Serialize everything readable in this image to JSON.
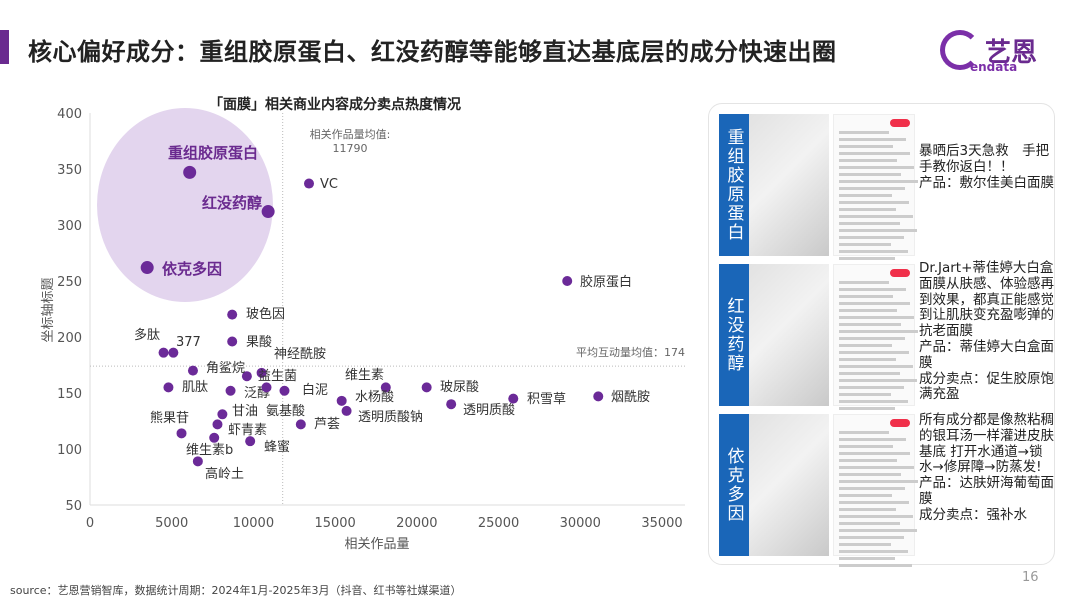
{
  "header": {
    "title": "核心偏好成分：重组胶原蛋白、红没药醇等能够直达基底层的成分快速出圈",
    "logo_cn": "艺恩",
    "logo_en": "endata"
  },
  "colors": {
    "accent": "#6a2a8f",
    "point": "#6b2a98",
    "highlight_ellipse": "#e3d5ee",
    "tag_blue": "#1a66b8"
  },
  "chart_data": {
    "type": "scatter",
    "title": "「面膜」相关商业内容成分卖点热度情况",
    "xlabel": "相关作品量",
    "ylabel": "坐标轴标题",
    "xlim": [
      0,
      35000
    ],
    "ylim": [
      50,
      400
    ],
    "xticks": [
      0,
      5000,
      10000,
      15000,
      20000,
      25000,
      30000,
      35000
    ],
    "yticks": [
      50,
      100,
      150,
      200,
      250,
      300,
      350,
      400
    ],
    "grid": false,
    "x_mean": {
      "label": "相关作品量均值:",
      "value": "11790"
    },
    "y_mean": {
      "label": "平均互动量均值：174",
      "value": 174
    },
    "highlighted": [
      "重组胶原蛋白",
      "红没药醇",
      "依克多因"
    ],
    "points": [
      {
        "name": "重组胶原蛋白",
        "x": 6100,
        "y": 347
      },
      {
        "name": "红没药醇",
        "x": 10900,
        "y": 312
      },
      {
        "name": "依克多因",
        "x": 3500,
        "y": 262
      },
      {
        "name": "VC",
        "x": 13400,
        "y": 337
      },
      {
        "name": "胶原蛋白",
        "x": 29200,
        "y": 250
      },
      {
        "name": "玻色因",
        "x": 8700,
        "y": 220
      },
      {
        "name": "多肽",
        "x": 4500,
        "y": 186
      },
      {
        "name": "377",
        "x": 5100,
        "y": 186
      },
      {
        "name": "果酸",
        "x": 8700,
        "y": 196
      },
      {
        "name": "神经酰胺",
        "x": 10500,
        "y": 168
      },
      {
        "name": "益生菌",
        "x": 9600,
        "y": 165
      },
      {
        "name": "角鲨烷",
        "x": 6300,
        "y": 170
      },
      {
        "name": "肌肽",
        "x": 4800,
        "y": 155
      },
      {
        "name": "泛醇",
        "x": 8600,
        "y": 152
      },
      {
        "name": "氨基酸",
        "x": 10800,
        "y": 155
      },
      {
        "name": "白泥",
        "x": 11900,
        "y": 152
      },
      {
        "name": "甘油",
        "x": 8100,
        "y": 131
      },
      {
        "name": "虾青素",
        "x": 7800,
        "y": 122
      },
      {
        "name": "熊果苷",
        "x": 5600,
        "y": 114
      },
      {
        "name": "维生素b",
        "x": 7600,
        "y": 110
      },
      {
        "name": "蜂蜜",
        "x": 9800,
        "y": 107
      },
      {
        "name": "芦荟",
        "x": 12900,
        "y": 122
      },
      {
        "name": "高岭土",
        "x": 6600,
        "y": 89
      },
      {
        "name": "维生素",
        "x": 18100,
        "y": 155
      },
      {
        "name": "水杨酸",
        "x": 15400,
        "y": 143
      },
      {
        "name": "透明质酸钠",
        "x": 15700,
        "y": 134
      },
      {
        "name": "玻尿酸",
        "x": 20600,
        "y": 155
      },
      {
        "name": "透明质酸",
        "x": 22100,
        "y": 140
      },
      {
        "name": "积雪草",
        "x": 25900,
        "y": 145
      },
      {
        "name": "烟酰胺",
        "x": 31100,
        "y": 147
      }
    ]
  },
  "cases": [
    {
      "tag": "重组胶原蛋白",
      "desc": "暴晒后3天急救　手把手教你返白！！\n产品：敷尔佳美白面膜"
    },
    {
      "tag": "红没药醇",
      "desc": "Dr.Jart+蒂佳婷大白盒面膜从肤感、体验感再到效果，都真正能感觉到让肌肤变充盈嘭弹的抗老面膜\n产品：蒂佳婷大白盒面膜\n成分卖点：促生胶原饱满充盈"
    },
    {
      "tag": "依克多因",
      "desc": "所有成分都是像熬粘稠的银耳汤一样灌进皮肤基底 打开水通道→锁水→修屏障→防蒸发!\n产品：达肤妍海葡萄面膜\n成分卖点：强补水"
    }
  ],
  "footer": {
    "source": "source：艺恩营销智库，数据统计周期：2024年1月-2025年3月（抖音、红书等社媒渠道）",
    "page": "16"
  }
}
